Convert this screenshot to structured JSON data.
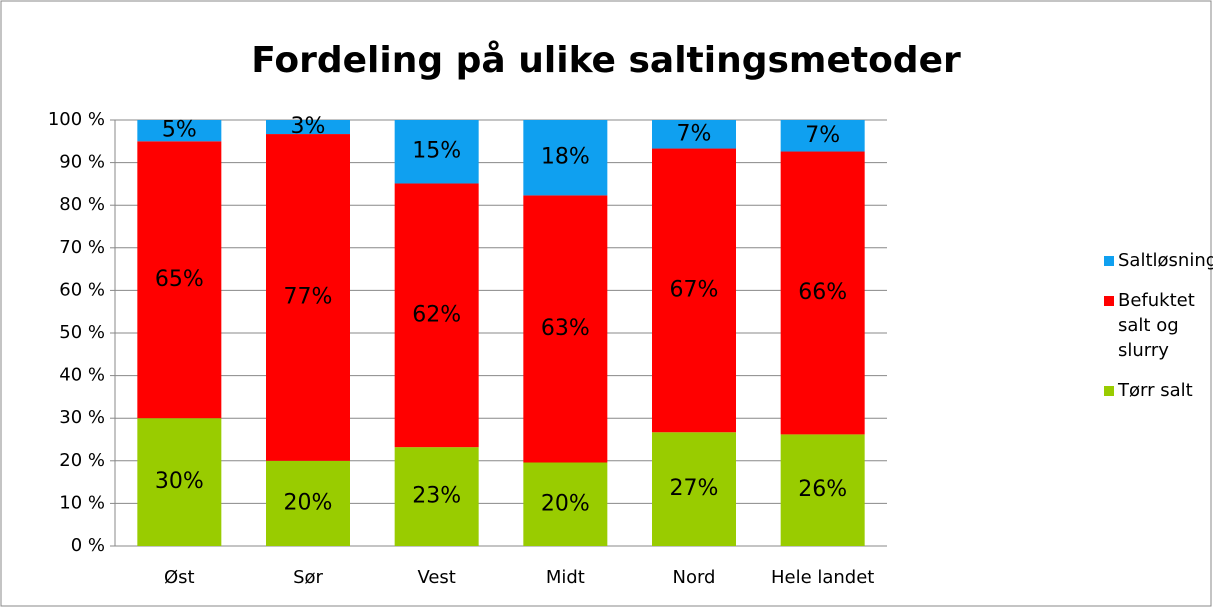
{
  "chart_data": {
    "type": "stacked_bar",
    "title": "Fordeling på ulike saltingsmetoder",
    "categories": [
      "Øst",
      "Sør",
      "Vest",
      "Midt",
      "Nord",
      "Hele landet"
    ],
    "series": [
      {
        "name": "Tørr salt",
        "color": "#99cc00",
        "values": [
          30,
          20,
          23.2,
          19.6,
          26.7,
          26.2
        ],
        "value_labels": [
          "30%",
          "20%",
          "23%",
          "20%",
          "27%",
          "26%"
        ]
      },
      {
        "name": "Befuktet salt og slurry",
        "color": "#ff0000",
        "values": [
          65,
          76.7,
          61.9,
          62.7,
          66.6,
          66.4
        ],
        "value_labels": [
          "65%",
          "77%",
          "62%",
          "63%",
          "67%",
          "66%"
        ]
      },
      {
        "name": "Saltløsning",
        "color": "#0fa0f0",
        "values": [
          5,
          3.3,
          14.9,
          17.7,
          6.7,
          7.4
        ],
        "value_labels": [
          "5%",
          "3%",
          "15%",
          "18%",
          "7%",
          "7%"
        ]
      }
    ],
    "ylim": [
      0,
      100
    ],
    "yticks": [
      {
        "value": 0,
        "label": "0 %"
      },
      {
        "value": 10,
        "label": "10 %"
      },
      {
        "value": 20,
        "label": "20 %"
      },
      {
        "value": 30,
        "label": "30 %"
      },
      {
        "value": 40,
        "label": "40 %"
      },
      {
        "value": 50,
        "label": "50 %"
      },
      {
        "value": 60,
        "label": "60 %"
      },
      {
        "value": 70,
        "label": "70 %"
      },
      {
        "value": 80,
        "label": "80 %"
      },
      {
        "value": 90,
        "label": "90 %"
      },
      {
        "value": 100,
        "label": "100 %"
      }
    ],
    "grid": true,
    "legend": "right"
  }
}
